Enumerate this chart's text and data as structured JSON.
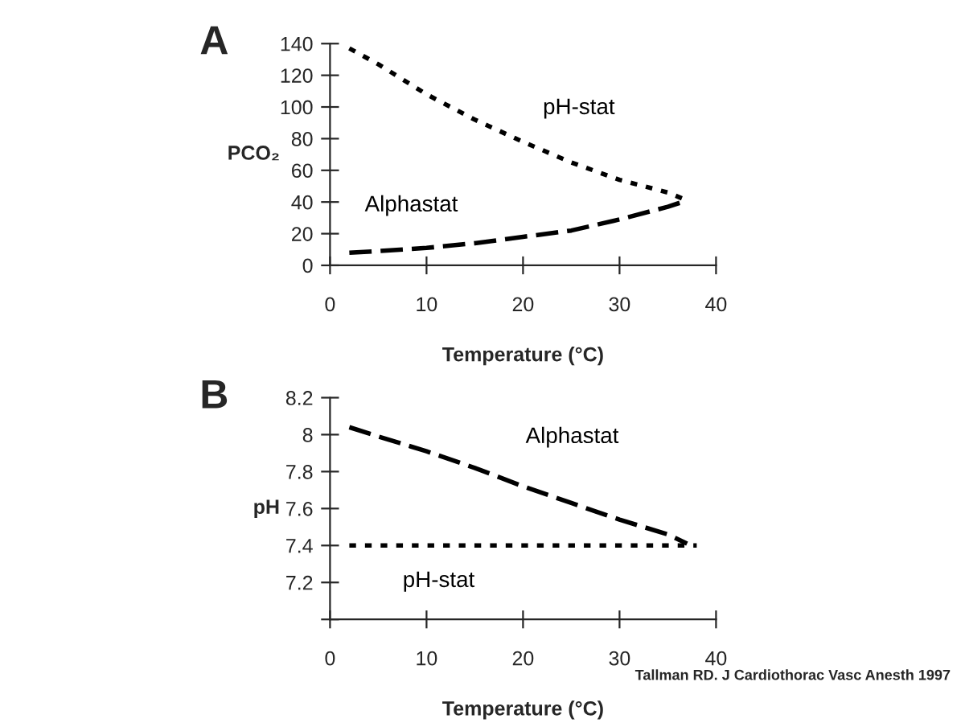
{
  "chart_data": [
    {
      "type": "line",
      "title": "A",
      "xlabel": "Temperature (°C)",
      "ylabel": "PCO₂",
      "xlim": [
        0,
        40
      ],
      "xticks": [
        0,
        10,
        20,
        30,
        40
      ],
      "ylim": [
        0,
        140
      ],
      "yticks": [
        0,
        20,
        40,
        60,
        80,
        100,
        120,
        140
      ],
      "grid": false,
      "legend": false,
      "marker": "none",
      "series": [
        {
          "name": "pH-stat",
          "color": "#000000",
          "line_style": "dotted",
          "x": [
            2,
            5,
            10,
            15,
            20,
            25,
            30,
            35,
            37
          ],
          "values": [
            137,
            127,
            108,
            92,
            78,
            65,
            54,
            46,
            41
          ]
        },
        {
          "name": "Alphastat",
          "color": "#000000",
          "line_style": "dashed",
          "x": [
            2,
            5,
            10,
            15,
            20,
            25,
            30,
            35,
            37
          ],
          "values": [
            8,
            9,
            11,
            14,
            18,
            22,
            29,
            37,
            41
          ]
        }
      ]
    },
    {
      "type": "line",
      "title": "B",
      "xlabel": "Temperature (°C)",
      "ylabel": "pH",
      "xlim": [
        0,
        40
      ],
      "xticks": [
        0,
        10,
        20,
        30,
        40
      ],
      "ylim": [
        7.0,
        8.2
      ],
      "yticks": [
        {
          "value": 7.0,
          "label": null
        },
        7.2,
        7.4,
        7.6,
        7.8,
        8,
        8.2
      ],
      "grid": false,
      "legend": false,
      "marker": "none",
      "annotations": [
        "Tallman RD. J Cardiothorac Vasc Anesth 1997"
      ],
      "series": [
        {
          "name": "Alphastat",
          "color": "#000000",
          "line_style": "dashed",
          "x": [
            2,
            5,
            10,
            15,
            20,
            25,
            30,
            35,
            37
          ],
          "values": [
            8.04,
            7.99,
            7.91,
            7.82,
            7.72,
            7.63,
            7.54,
            7.46,
            7.41
          ]
        },
        {
          "name": "pH-stat",
          "color": "#000000",
          "line_style": "dotted",
          "x": [
            2,
            38
          ],
          "values": [
            7.4,
            7.4
          ]
        }
      ]
    }
  ]
}
